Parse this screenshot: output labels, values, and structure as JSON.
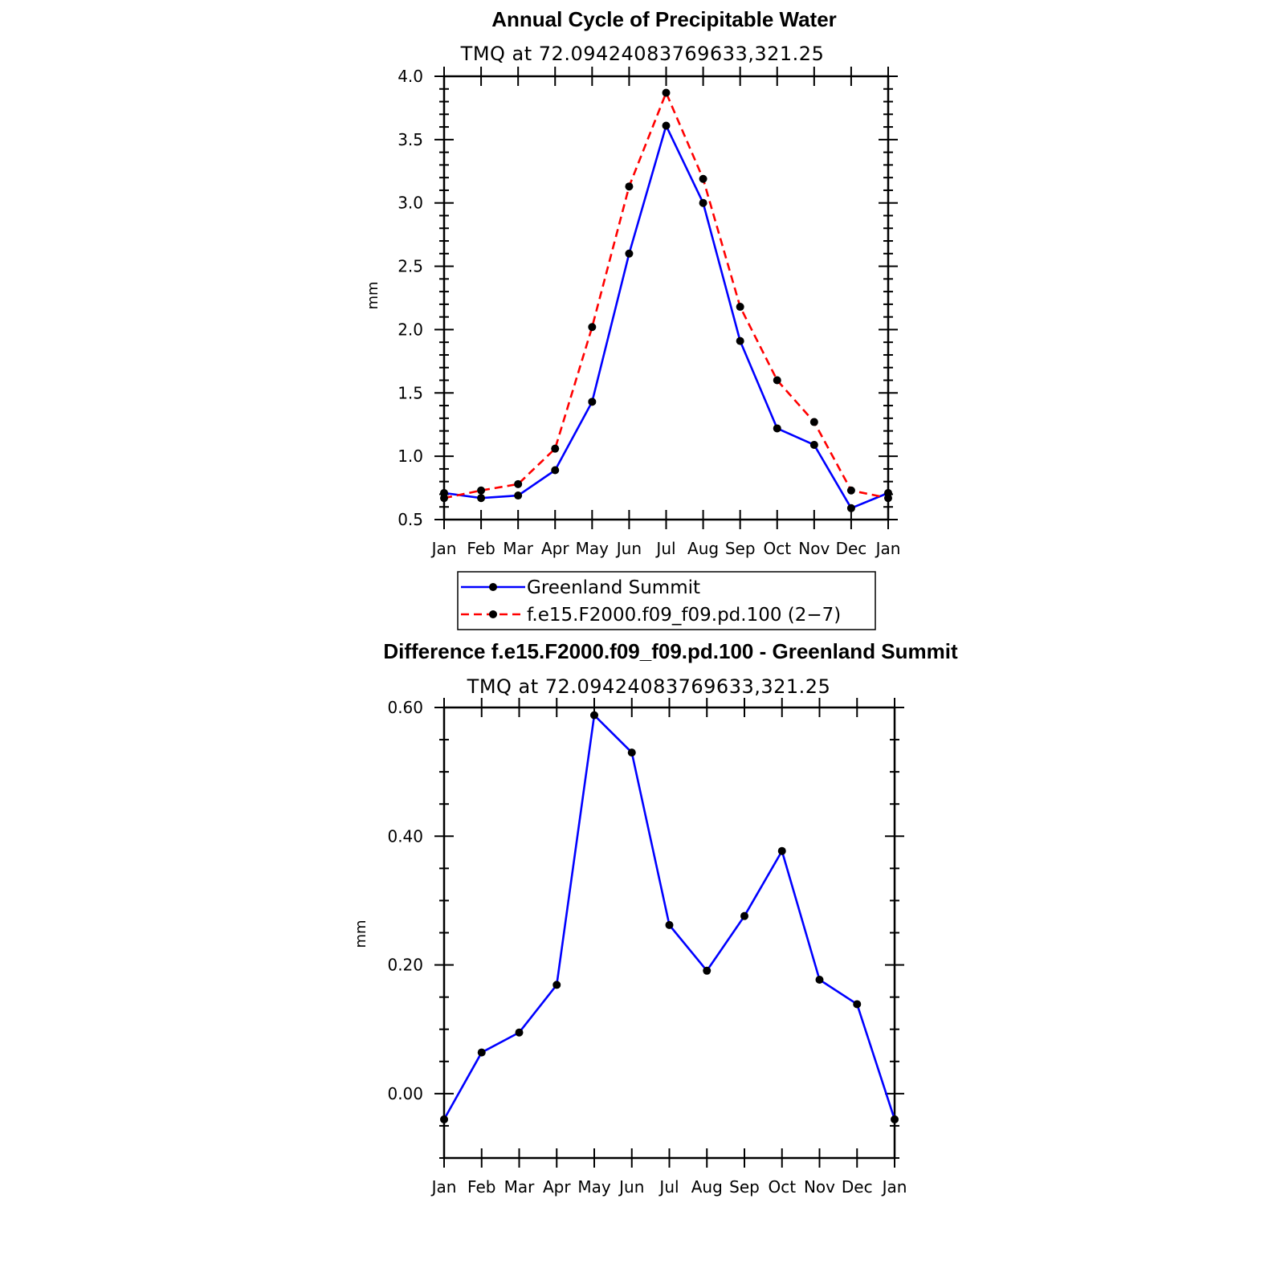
{
  "chart_data": [
    {
      "type": "line",
      "title": "Annual Cycle of Precipitable Water",
      "subtitle": "TMQ at 72.09424083769633,321.25",
      "ylabel": "mm",
      "xlabel": "",
      "ylim": [
        0.5,
        4.0
      ],
      "yticks": [
        "0.5",
        "1.0",
        "1.5",
        "2.0",
        "2.5",
        "3.0",
        "3.5",
        "4.0"
      ],
      "categories": [
        "Jan",
        "Feb",
        "Mar",
        "Apr",
        "May",
        "Jun",
        "Jul",
        "Aug",
        "Sep",
        "Oct",
        "Nov",
        "Dec",
        "Jan"
      ],
      "grid": false,
      "legend_position": "bottom",
      "series": [
        {
          "name": "Greenland Summit",
          "color": "#0000ff",
          "dash": "solid",
          "values": [
            0.71,
            0.67,
            0.69,
            0.89,
            1.43,
            2.6,
            3.61,
            3.0,
            1.91,
            1.22,
            1.09,
            0.59,
            0.71
          ]
        },
        {
          "name": "f.e15.F2000.f09_f09.pd.100 (2−7)",
          "color": "#ff0000",
          "dash": "dashed",
          "values": [
            0.67,
            0.73,
            0.78,
            1.06,
            2.02,
            3.13,
            3.87,
            3.19,
            2.18,
            1.6,
            1.27,
            0.73,
            0.67
          ]
        }
      ]
    },
    {
      "type": "line",
      "title": "Difference f.e15.F2000.f09_f09.pd.100 - Greenland Summit",
      "subtitle": "TMQ at 72.09424083769633,321.25",
      "ylabel": "mm",
      "xlabel": "",
      "ylim": [
        -0.1,
        0.6
      ],
      "yticks": [
        "0.00",
        "0.20",
        "0.40",
        "0.60"
      ],
      "ytick_values": [
        0.0,
        0.2,
        0.4,
        0.6
      ],
      "categories": [
        "Jan",
        "Feb",
        "Mar",
        "Apr",
        "May",
        "Jun",
        "Jul",
        "Aug",
        "Sep",
        "Oct",
        "Nov",
        "Dec",
        "Jan"
      ],
      "grid": false,
      "series": [
        {
          "color": "#0000ff",
          "dash": "solid",
          "values": [
            -0.04,
            0.064,
            0.095,
            0.169,
            0.588,
            0.53,
            0.262,
            0.191,
            0.276,
            0.377,
            0.177,
            0.139,
            -0.04
          ]
        }
      ]
    }
  ]
}
